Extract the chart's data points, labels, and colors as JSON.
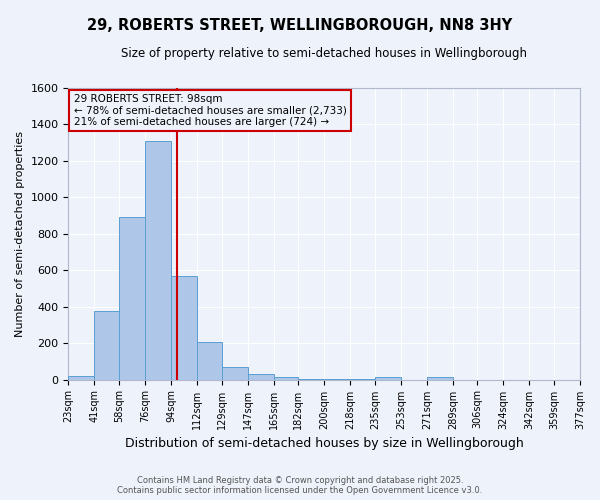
{
  "title": "29, ROBERTS STREET, WELLINGBOROUGH, NN8 3HY",
  "subtitle": "Size of property relative to semi-detached houses in Wellingborough",
  "xlabel": "Distribution of semi-detached houses by size in Wellingborough",
  "ylabel": "Number of semi-detached properties",
  "bin_edges": [
    23,
    41,
    58,
    76,
    94,
    112,
    129,
    147,
    165,
    182,
    200,
    218,
    235,
    253,
    271,
    289,
    306,
    324,
    342,
    359,
    377
  ],
  "bin_labels": [
    "23sqm",
    "41sqm",
    "58sqm",
    "76sqm",
    "94sqm",
    "112sqm",
    "129sqm",
    "147sqm",
    "165sqm",
    "182sqm",
    "200sqm",
    "218sqm",
    "235sqm",
    "253sqm",
    "271sqm",
    "289sqm",
    "306sqm",
    "324sqm",
    "342sqm",
    "359sqm",
    "377sqm"
  ],
  "counts": [
    20,
    375,
    895,
    1310,
    570,
    205,
    70,
    30,
    15,
    5,
    5,
    2,
    15,
    0,
    12,
    0,
    0,
    0,
    0,
    0
  ],
  "bar_color": "#aec6e8",
  "bar_edge_color": "#5a9fd4",
  "property_size": 98,
  "annotation_title": "29 ROBERTS STREET: 98sqm",
  "annotation_line1": "← 78% of semi-detached houses are smaller (2,733)",
  "annotation_line2": "21% of semi-detached houses are larger (724) →",
  "red_line_color": "#cc0000",
  "ylim": [
    0,
    1600
  ],
  "yticks": [
    0,
    200,
    400,
    600,
    800,
    1000,
    1200,
    1400,
    1600
  ],
  "footnote1": "Contains HM Land Registry data © Crown copyright and database right 2025.",
  "footnote2": "Contains public sector information licensed under the Open Government Licence v3.0.",
  "background_color": "#eef2fb",
  "grid_color": "#ffffff"
}
